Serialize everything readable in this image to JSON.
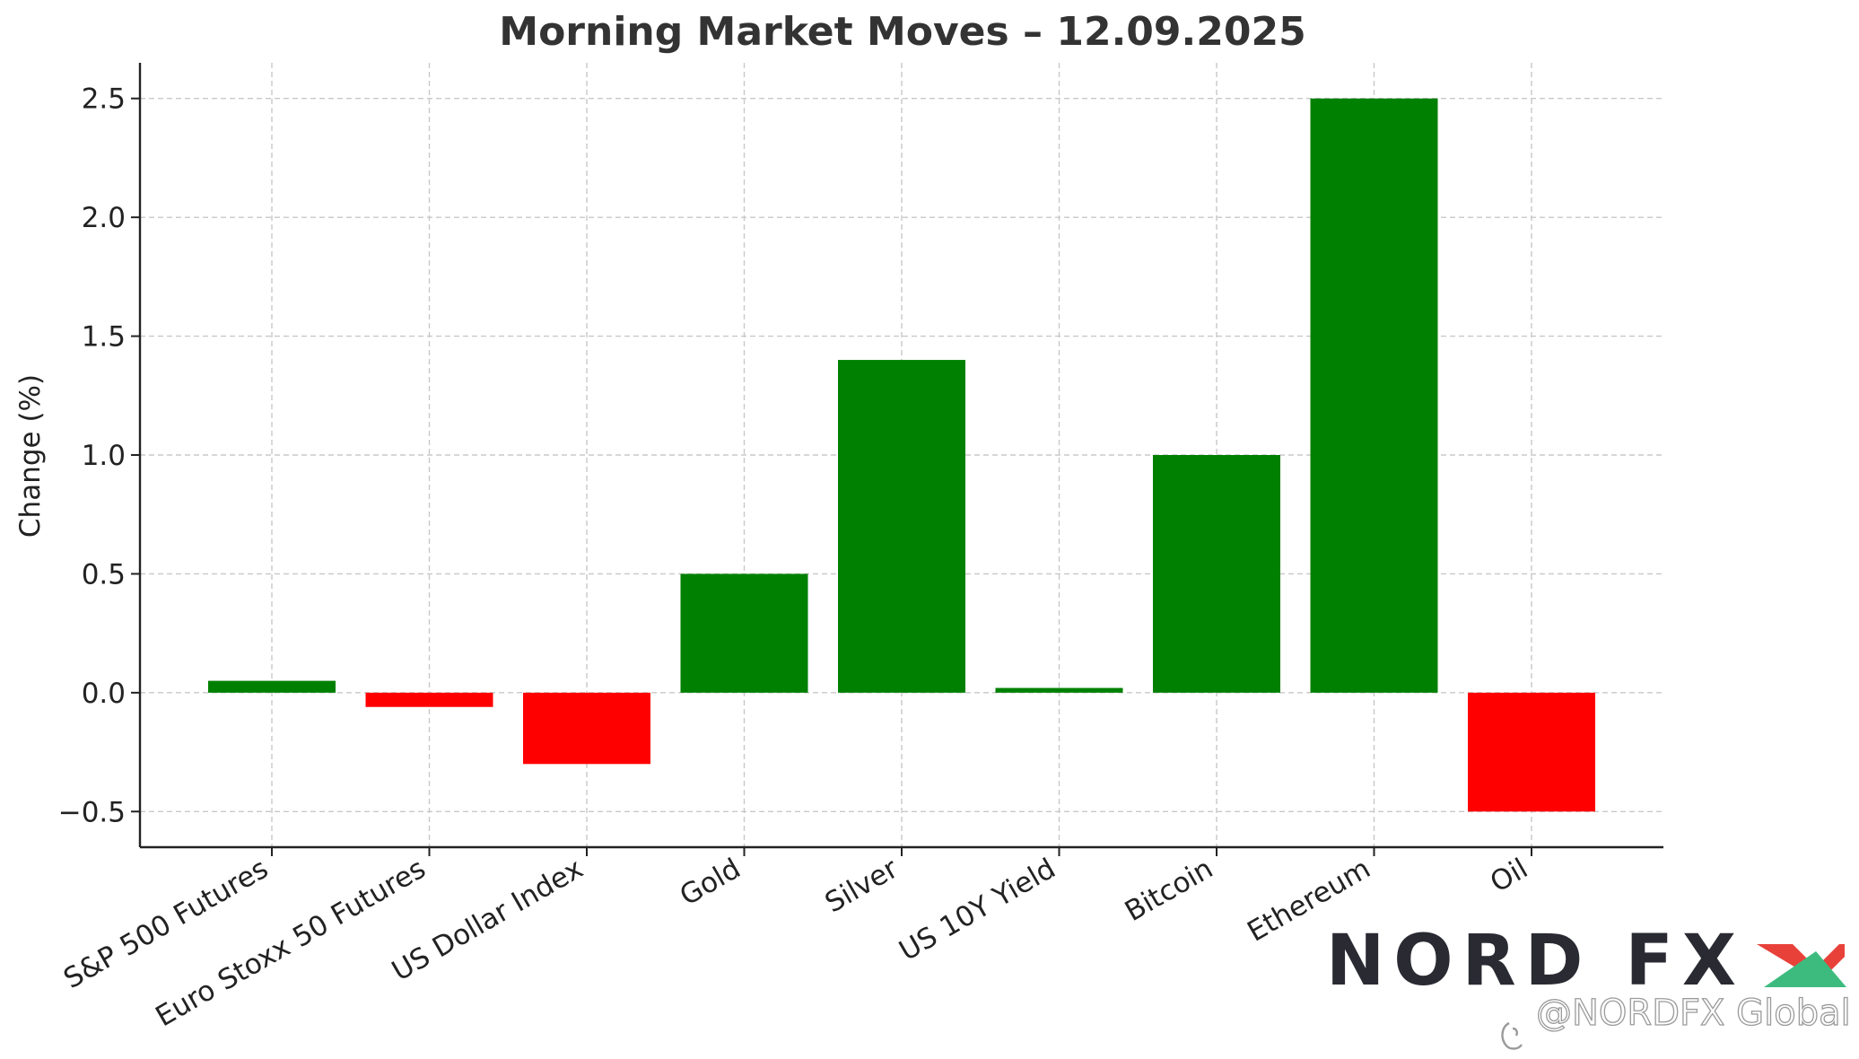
{
  "chart_data": {
    "type": "bar",
    "title": "Morning Market Moves – 12.09.2025",
    "xlabel": "",
    "ylabel": "Change (%)",
    "categories": [
      "S&P 500 Futures",
      "Euro Stoxx 50 Futures",
      "US Dollar Index",
      "Gold",
      "Silver",
      "US 10Y Yield",
      "Bitcoin",
      "Ethereum",
      "Oil"
    ],
    "values": [
      0.05,
      -0.06,
      -0.3,
      0.5,
      1.4,
      0.02,
      1.0,
      2.5,
      -0.5
    ],
    "ylim": [
      -0.65,
      2.65
    ],
    "yticks": [
      -0.5,
      0.0,
      0.5,
      1.0,
      1.5,
      2.0,
      2.5
    ],
    "ytick_labels": [
      "−0.5",
      "0.0",
      "0.5",
      "1.0",
      "1.5",
      "2.0",
      "2.5"
    ],
    "grid": true,
    "colors": {
      "positive": "#008000",
      "negative": "#ff0000"
    }
  },
  "branding": {
    "logo_text": "NORD FX",
    "watermark": "@NORDFX Global",
    "logo_color": "#2a2a33",
    "logo_x_green": "#3dbb7f",
    "logo_x_red": "#e8413a"
  }
}
